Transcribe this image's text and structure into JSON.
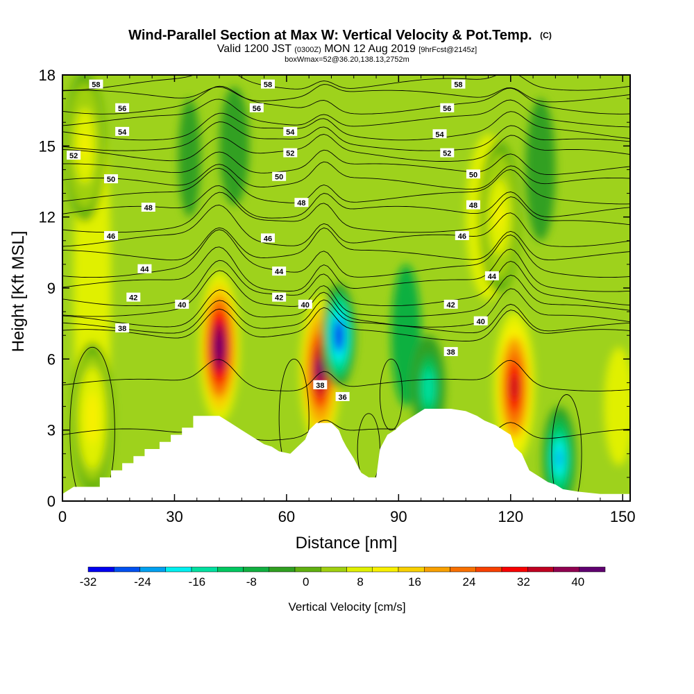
{
  "title": {
    "main": "Wind-Parallel Section at Max W: Vertical Velocity & Pot.Temp.",
    "main_suffix": "(C)",
    "sub_prefix": "Valid 1200 JST",
    "sub_small": "(0300Z)",
    "sub_main": "MON 12 Aug 2019",
    "sub_fcst": "[9hrFcst@2145z]",
    "box_line": "boxWmax=52@36.20,138.13,2752m"
  },
  "chart_data": {
    "type": "heatmap",
    "title": "Wind-Parallel Section at Max W: Vertical Velocity & Pot.Temp.",
    "xlabel": "Distance [nm]",
    "ylabel": "Height [Kft MSL]",
    "xlim": [
      0,
      152
    ],
    "ylim": [
      0,
      18
    ],
    "x_ticks": [
      0,
      30,
      60,
      90,
      120,
      150
    ],
    "y_ticks": [
      0,
      3,
      6,
      9,
      12,
      15,
      18
    ],
    "colorbar": {
      "label": "Vertical Velocity [cm/s]",
      "range": [
        -32,
        44
      ],
      "ticks": [
        -32,
        -24,
        -16,
        -8,
        0,
        8,
        16,
        24,
        32,
        40
      ],
      "colors": [
        "#0000f0",
        "#0050f0",
        "#00a0f0",
        "#00f0f0",
        "#00e0a0",
        "#00c860",
        "#10b040",
        "#30a020",
        "#60b010",
        "#a0d010",
        "#e0f000",
        "#f8f000",
        "#f8d000",
        "#f8a000",
        "#f87000",
        "#f84000",
        "#f80000",
        "#c00020",
        "#900050",
        "#600070"
      ]
    },
    "velocity_features": [
      {
        "x": 42,
        "z": 6.5,
        "w": 44,
        "note": "updraft"
      },
      {
        "x": 69,
        "z": 5.5,
        "w": 42,
        "note": "updraft"
      },
      {
        "x": 74,
        "z": 7.0,
        "w": -30,
        "note": "downdraft"
      },
      {
        "x": 121,
        "z": 4.8,
        "w": 36,
        "note": "updraft"
      },
      {
        "x": 133,
        "z": 1.8,
        "w": -22,
        "note": "downdraft"
      },
      {
        "x": 98,
        "z": 4.8,
        "w": -16,
        "note": "downdraft"
      },
      {
        "x": 8,
        "z": 3.5,
        "w": 12,
        "note": "updraft"
      },
      {
        "x": 6,
        "z": 15,
        "w": 10,
        "note": "updraft"
      },
      {
        "x": 117,
        "z": 12,
        "w": 10,
        "note": "updraft"
      }
    ],
    "terrain": [
      [
        0,
        0.3
      ],
      [
        3,
        0.6
      ],
      [
        10,
        0.6
      ],
      [
        10,
        1.0
      ],
      [
        13,
        1.0
      ],
      [
        13,
        1.3
      ],
      [
        16,
        1.3
      ],
      [
        16,
        1.6
      ],
      [
        19,
        1.6
      ],
      [
        19,
        1.9
      ],
      [
        22,
        1.9
      ],
      [
        22,
        2.2
      ],
      [
        26,
        2.2
      ],
      [
        26,
        2.5
      ],
      [
        29,
        2.5
      ],
      [
        29,
        2.8
      ],
      [
        32,
        2.8
      ],
      [
        32,
        3.1
      ],
      [
        35,
        3.1
      ],
      [
        35,
        3.6
      ],
      [
        42,
        3.6
      ],
      [
        45,
        3.3
      ],
      [
        48,
        3.0
      ],
      [
        50,
        2.8
      ],
      [
        52,
        2.6
      ],
      [
        54,
        2.4
      ],
      [
        56,
        2.3
      ],
      [
        58,
        2.1
      ],
      [
        61,
        2.0
      ],
      [
        63,
        2.3
      ],
      [
        65,
        2.6
      ],
      [
        66,
        3.0
      ],
      [
        68,
        3.3
      ],
      [
        72,
        3.3
      ],
      [
        74,
        3.0
      ],
      [
        75,
        2.6
      ],
      [
        76,
        2.3
      ],
      [
        78,
        1.8
      ],
      [
        80,
        1.2
      ],
      [
        82,
        1.0
      ],
      [
        84,
        1.0
      ],
      [
        85,
        2.2
      ],
      [
        87,
        2.8
      ],
      [
        89,
        3.0
      ],
      [
        91,
        3.3
      ],
      [
        93,
        3.5
      ],
      [
        95,
        3.7
      ],
      [
        97,
        3.9
      ],
      [
        104,
        3.9
      ],
      [
        108,
        3.8
      ],
      [
        111,
        3.6
      ],
      [
        113,
        3.4
      ],
      [
        116,
        3.2
      ],
      [
        118,
        3.0
      ],
      [
        120,
        2.8
      ],
      [
        121,
        2.3
      ],
      [
        123,
        2.0
      ],
      [
        125,
        1.3
      ],
      [
        128,
        1.0
      ],
      [
        130,
        0.8
      ],
      [
        132,
        0.7
      ],
      [
        134,
        0.5
      ],
      [
        138,
        0.4
      ],
      [
        144,
        0.3
      ],
      [
        152,
        0.3
      ]
    ],
    "theta_contours": [
      {
        "level": 36,
        "z": 2.8,
        "label": "36",
        "label_pos": [
          75,
          4.4
        ]
      },
      {
        "level": 38,
        "z": 7.0,
        "label": "38",
        "label_pos": [
          16,
          7.3
        ]
      },
      {
        "level": 40,
        "z": 7.6,
        "label": "40",
        "label_pos": [
          32,
          8.3
        ]
      },
      {
        "level": 42,
        "z": 8.5,
        "label": "42",
        "label_pos": [
          19,
          8.6
        ]
      },
      {
        "level": 44,
        "z": 9.7,
        "label": "44",
        "label_pos": [
          22,
          9.8
        ]
      },
      {
        "level": 46,
        "z": 11.0,
        "label": "46",
        "label_pos": [
          13,
          11.2
        ]
      },
      {
        "level": 48,
        "z": 12.2,
        "label": "48",
        "label_pos": [
          23,
          12.4
        ]
      },
      {
        "level": 50,
        "z": 13.4,
        "label": "50",
        "label_pos": [
          13,
          13.6
        ]
      },
      {
        "level": 52,
        "z": 14.6,
        "label": "52",
        "label_pos": [
          3,
          14.6
        ]
      },
      {
        "level": 54,
        "z": 15.5,
        "label": "54",
        "label_pos": [
          16,
          15.6
        ]
      },
      {
        "level": 56,
        "z": 16.6,
        "label": "56",
        "label_pos": [
          16,
          16.6
        ]
      },
      {
        "level": 58,
        "z": 17.6,
        "label": "58",
        "label_pos": [
          9,
          17.6
        ]
      }
    ],
    "contour_labels": [
      {
        "t": "58",
        "x": 9,
        "z": 17.6
      },
      {
        "t": "58",
        "x": 55,
        "z": 17.6
      },
      {
        "t": "58",
        "x": 106,
        "z": 17.6
      },
      {
        "t": "56",
        "x": 16,
        "z": 16.6
      },
      {
        "t": "56",
        "x": 52,
        "z": 16.6
      },
      {
        "t": "56",
        "x": 103,
        "z": 16.6
      },
      {
        "t": "54",
        "x": 16,
        "z": 15.6
      },
      {
        "t": "54",
        "x": 61,
        "z": 15.6
      },
      {
        "t": "54",
        "x": 101,
        "z": 15.5
      },
      {
        "t": "52",
        "x": 3,
        "z": 14.6
      },
      {
        "t": "52",
        "x": 61,
        "z": 14.7
      },
      {
        "t": "52",
        "x": 103,
        "z": 14.7
      },
      {
        "t": "50",
        "x": 13,
        "z": 13.6
      },
      {
        "t": "50",
        "x": 58,
        "z": 13.7
      },
      {
        "t": "50",
        "x": 110,
        "z": 13.8
      },
      {
        "t": "48",
        "x": 23,
        "z": 12.4
      },
      {
        "t": "48",
        "x": 64,
        "z": 12.6
      },
      {
        "t": "48",
        "x": 110,
        "z": 12.5
      },
      {
        "t": "46",
        "x": 13,
        "z": 11.2
      },
      {
        "t": "46",
        "x": 55,
        "z": 11.1
      },
      {
        "t": "46",
        "x": 107,
        "z": 11.2
      },
      {
        "t": "44",
        "x": 22,
        "z": 9.8
      },
      {
        "t": "44",
        "x": 58,
        "z": 9.7
      },
      {
        "t": "44",
        "x": 115,
        "z": 9.5
      },
      {
        "t": "42",
        "x": 19,
        "z": 8.6
      },
      {
        "t": "42",
        "x": 58,
        "z": 8.6
      },
      {
        "t": "42",
        "x": 104,
        "z": 8.3
      },
      {
        "t": "40",
        "x": 32,
        "z": 8.3
      },
      {
        "t": "40",
        "x": 65,
        "z": 8.3
      },
      {
        "t": "40",
        "x": 112,
        "z": 7.6
      },
      {
        "t": "38",
        "x": 16,
        "z": 7.3
      },
      {
        "t": "38",
        "x": 104,
        "z": 6.3
      },
      {
        "t": "38",
        "x": 69,
        "z": 4.9
      },
      {
        "t": "36",
        "x": 75,
        "z": 4.4
      }
    ]
  }
}
